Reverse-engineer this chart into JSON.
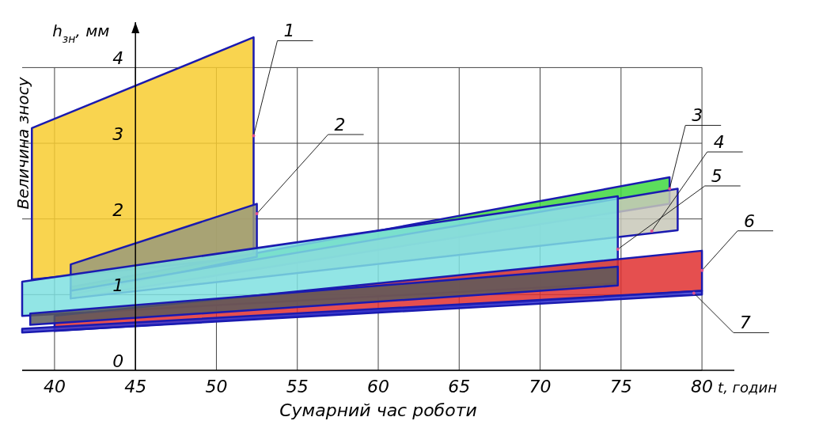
{
  "chart_data": {
    "type": "area",
    "xlabel": "Сумарний час роботи",
    "ylabel": "Величина зносу",
    "xlim": [
      38,
      82
    ],
    "ylim": [
      0,
      4.6
    ],
    "xticks": [
      40,
      45,
      50,
      55,
      60,
      65,
      70,
      75,
      80
    ],
    "yticks": [
      0,
      1,
      2,
      3,
      4
    ],
    "grid": true,
    "series": [
      {
        "color": "#f8cc30",
        "x": [
          38.6,
          52.3,
          52.3,
          38.6
        ],
        "values": [
          3.2,
          4.4,
          1.5,
          1.2
        ]
      },
      {
        "color": "#40d840",
        "x": [
          41,
          78,
          78,
          41
        ],
        "values": [
          1.1,
          2.55,
          2.2,
          0.95
        ]
      },
      {
        "color": "#9a9a7a",
        "x": [
          41,
          52.5,
          52.5,
          41
        ],
        "values": [
          1.4,
          2.2,
          1.5,
          1.0
        ]
      },
      {
        "color": "#c8c8b8",
        "x": [
          41,
          78.5,
          78.5,
          41
        ],
        "values": [
          1.05,
          2.4,
          1.85,
          0.95
        ]
      },
      {
        "color": "#7fe0e0",
        "x": [
          38,
          74.8,
          74.8,
          38
        ],
        "values": [
          1.17,
          2.3,
          1.15,
          0.72
        ]
      },
      {
        "color": "#e03030",
        "x": [
          40,
          80,
          80,
          40
        ],
        "values": [
          0.72,
          1.58,
          1.05,
          0.52
        ]
      },
      {
        "color": "#5a5a5a",
        "x": [
          38.5,
          74.8,
          74.8,
          38.5
        ],
        "values": [
          0.75,
          1.37,
          1.12,
          0.6
        ]
      },
      {
        "color": "#3a3ad0",
        "x": [
          38,
          80,
          80,
          38
        ],
        "values": [
          0.55,
          1.05,
          1.0,
          0.5
        ]
      }
    ],
    "annotations": [
      "t, годин",
      "h$_{зн}$, мм",
      {
        "text": "1",
        "x": 52.3,
        "y": 3.1
      },
      {
        "text": "2",
        "x": 52.5,
        "y": 2.07
      },
      {
        "text": "3",
        "x": 78,
        "y": 2.4
      },
      {
        "text": "4",
        "x": 76.9,
        "y": 1.84
      },
      {
        "text": "5",
        "x": 74.8,
        "y": 1.6
      },
      {
        "text": "6",
        "x": 80,
        "y": 1.32
      },
      {
        "text": "7",
        "x": 79.5,
        "y": 1.02
      }
    ]
  }
}
